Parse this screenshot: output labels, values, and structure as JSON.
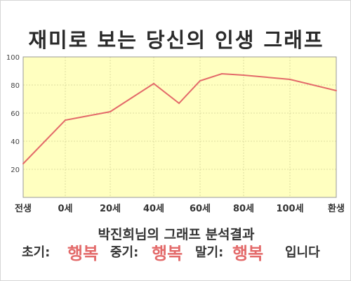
{
  "title": "재미로 보는 당신의 인생 그래프",
  "chart_data": {
    "type": "area",
    "title": "재미로 보는 당신의 인생 그래프",
    "x_tick_labels": [
      "전생",
      "0세",
      "20세",
      "40세",
      "60세",
      "80세",
      "100세",
      "환생"
    ],
    "y_ticks": [
      20,
      40,
      60,
      80,
      100
    ],
    "ylim": [
      0,
      100
    ],
    "grid": true,
    "series": [
      {
        "x": [
          "전생",
          "0세",
          "20세",
          "30세",
          "40세",
          "50세",
          "60세",
          "70세",
          "80세",
          "100세",
          "환생"
        ],
        "values": [
          24,
          55,
          61,
          71,
          81,
          67,
          83,
          88,
          87,
          84,
          76
        ]
      }
    ],
    "colors": {
      "fill": "#ffffc0",
      "line": "#e36a6a",
      "grid": "#dcdca0",
      "axis": "#999999"
    }
  },
  "summary": {
    "heading": "박진희님의 그래프 분석결과",
    "early_label": "초기:",
    "early_value": "행복",
    "middle_label": "중기:",
    "middle_value": "행복",
    "late_label": "말기:",
    "late_value": "행복",
    "ending": "입니다"
  }
}
